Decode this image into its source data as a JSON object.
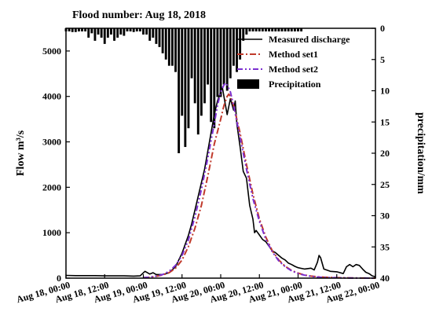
{
  "chart_data": {
    "type": "line",
    "title": "Flood number: Aug 18, 2018",
    "ylabel": "Flow m³/s",
    "y2label": "precipitation/mm",
    "ylim": [
      0,
      5500
    ],
    "y2lim": [
      0,
      40
    ],
    "y2_inverted": true,
    "xlim": [
      "Aug 18, 00:00",
      "Aug 22, 00:00"
    ],
    "x_unit": "hours since Aug 18, 00:00",
    "x_ticks": [
      {
        "label": "Aug 18, 00:00",
        "x": 0
      },
      {
        "label": "Aug 18, 12:00",
        "x": 12
      },
      {
        "label": "Aug 19, 00:00",
        "x": 24
      },
      {
        "label": "Aug 19, 12:00",
        "x": 36
      },
      {
        "label": "Aug 20, 00:00",
        "x": 48
      },
      {
        "label": "Aug 20, 12:00",
        "x": 60
      },
      {
        "label": "Aug 21, 00:00",
        "x": 72
      },
      {
        "label": "Aug 21, 12:00",
        "x": 84
      },
      {
        "label": "Aug 22, 00:00",
        "x": 96
      }
    ],
    "y_ticks": [
      0,
      1000,
      2000,
      3000,
      4000,
      5000
    ],
    "y2_ticks": [
      0,
      5,
      10,
      15,
      20,
      25,
      30,
      35,
      40
    ],
    "legend": {
      "position": "top-right"
    },
    "series": [
      {
        "name": "Measured discharge",
        "type": "line",
        "axis": "left",
        "color": "#000000",
        "dash": "solid",
        "points": [
          [
            0,
            60
          ],
          [
            3,
            55
          ],
          [
            6,
            55
          ],
          [
            9,
            55
          ],
          [
            12,
            50
          ],
          [
            15,
            50
          ],
          [
            18,
            50
          ],
          [
            21,
            45
          ],
          [
            23,
            50
          ],
          [
            24.5,
            150
          ],
          [
            26,
            90
          ],
          [
            27,
            120
          ],
          [
            28,
            80
          ],
          [
            30,
            80
          ],
          [
            32,
            120
          ],
          [
            34,
            250
          ],
          [
            35,
            400
          ],
          [
            36,
            550
          ],
          [
            37,
            750
          ],
          [
            38,
            950
          ],
          [
            39,
            1200
          ],
          [
            40,
            1500
          ],
          [
            41,
            1800
          ],
          [
            42,
            2100
          ],
          [
            43,
            2400
          ],
          [
            44,
            2800
          ],
          [
            45,
            3200
          ],
          [
            46,
            3600
          ],
          [
            47,
            3900
          ],
          [
            48,
            4100
          ],
          [
            48.5,
            4200
          ],
          [
            49,
            4000
          ],
          [
            50,
            3600
          ],
          [
            51,
            3950
          ],
          [
            52,
            3700
          ],
          [
            52.5,
            3900
          ],
          [
            53,
            3400
          ],
          [
            54,
            2900
          ],
          [
            55,
            2350
          ],
          [
            56,
            2200
          ],
          [
            57,
            1600
          ],
          [
            58,
            1300
          ],
          [
            58.5,
            1000
          ],
          [
            59,
            1050
          ],
          [
            60,
            950
          ],
          [
            61,
            850
          ],
          [
            62,
            800
          ],
          [
            63,
            700
          ],
          [
            64,
            600
          ],
          [
            65,
            560
          ],
          [
            66,
            500
          ],
          [
            67,
            440
          ],
          [
            68,
            400
          ],
          [
            69,
            330
          ],
          [
            70,
            300
          ],
          [
            71,
            260
          ],
          [
            72,
            230
          ],
          [
            74,
            200
          ],
          [
            76,
            220
          ],
          [
            77,
            180
          ],
          [
            78,
            350
          ],
          [
            78.5,
            500
          ],
          [
            79,
            450
          ],
          [
            80,
            200
          ],
          [
            82,
            150
          ],
          [
            84,
            140
          ],
          [
            86,
            100
          ],
          [
            87,
            250
          ],
          [
            88,
            300
          ],
          [
            89,
            250
          ],
          [
            90,
            300
          ],
          [
            91,
            280
          ],
          [
            92,
            200
          ],
          [
            93,
            130
          ],
          [
            94,
            100
          ],
          [
            95,
            50
          ],
          [
            96,
            30
          ]
        ]
      },
      {
        "name": "Method set1",
        "type": "line",
        "axis": "left",
        "color": "#c0392b",
        "dash": "dash-dot",
        "points": [
          [
            24,
            10
          ],
          [
            26,
            20
          ],
          [
            28,
            40
          ],
          [
            30,
            70
          ],
          [
            32,
            120
          ],
          [
            34,
            220
          ],
          [
            36,
            400
          ],
          [
            38,
            700
          ],
          [
            40,
            1100
          ],
          [
            42,
            1600
          ],
          [
            44,
            2250
          ],
          [
            46,
            2950
          ],
          [
            48,
            3500
          ],
          [
            49,
            3800
          ],
          [
            50,
            4000
          ],
          [
            50.5,
            4050
          ],
          [
            51,
            4000
          ],
          [
            52,
            3800
          ],
          [
            54,
            3200
          ],
          [
            56,
            2500
          ],
          [
            58,
            1850
          ],
          [
            60,
            1300
          ],
          [
            62,
            900
          ],
          [
            64,
            600
          ],
          [
            66,
            400
          ],
          [
            68,
            260
          ],
          [
            70,
            170
          ],
          [
            72,
            110
          ],
          [
            74,
            70
          ],
          [
            76,
            45
          ],
          [
            78,
            30
          ],
          [
            80,
            20
          ],
          [
            84,
            10
          ],
          [
            88,
            5
          ],
          [
            92,
            2
          ],
          [
            96,
            0
          ]
        ]
      },
      {
        "name": "Method set2",
        "type": "line",
        "axis": "left",
        "color": "#7b2fd0",
        "dash": "dash-dot-dot",
        "points": [
          [
            24,
            10
          ],
          [
            26,
            20
          ],
          [
            28,
            45
          ],
          [
            30,
            80
          ],
          [
            32,
            150
          ],
          [
            34,
            280
          ],
          [
            36,
            500
          ],
          [
            38,
            850
          ],
          [
            40,
            1350
          ],
          [
            42,
            1950
          ],
          [
            44,
            2650
          ],
          [
            46,
            3400
          ],
          [
            47,
            3800
          ],
          [
            48,
            4100
          ],
          [
            49,
            4250
          ],
          [
            49.5,
            4300
          ],
          [
            50,
            4250
          ],
          [
            51,
            4100
          ],
          [
            52,
            3800
          ],
          [
            54,
            3100
          ],
          [
            56,
            2400
          ],
          [
            58,
            1750
          ],
          [
            60,
            1250
          ],
          [
            62,
            850
          ],
          [
            64,
            580
          ],
          [
            66,
            380
          ],
          [
            68,
            250
          ],
          [
            70,
            160
          ],
          [
            72,
            100
          ],
          [
            74,
            65
          ],
          [
            76,
            40
          ],
          [
            78,
            25
          ],
          [
            80,
            15
          ],
          [
            84,
            8
          ],
          [
            88,
            4
          ],
          [
            92,
            2
          ],
          [
            96,
            0
          ]
        ]
      },
      {
        "name": "Precipitation",
        "type": "bar",
        "axis": "right",
        "color": "#000000",
        "points": [
          [
            0,
            0.5
          ],
          [
            1,
            0.5
          ],
          [
            2,
            0.6
          ],
          [
            3,
            0.6
          ],
          [
            4,
            0.5
          ],
          [
            5,
            0.5
          ],
          [
            6,
            0.5
          ],
          [
            7,
            1.5
          ],
          [
            8,
            0.8
          ],
          [
            9,
            2
          ],
          [
            10,
            1
          ],
          [
            11,
            1.5
          ],
          [
            12,
            2.5
          ],
          [
            13,
            1.5
          ],
          [
            14,
            1
          ],
          [
            15,
            2
          ],
          [
            16,
            1.5
          ],
          [
            17,
            1
          ],
          [
            18,
            1.2
          ],
          [
            19,
            0.5
          ],
          [
            20,
            0.5
          ],
          [
            21,
            0.6
          ],
          [
            22,
            0.5
          ],
          [
            23,
            0.5
          ],
          [
            24,
            1
          ],
          [
            25,
            1
          ],
          [
            26,
            2
          ],
          [
            27,
            1.5
          ],
          [
            28,
            2.5
          ],
          [
            29,
            3
          ],
          [
            30,
            4
          ],
          [
            31,
            5
          ],
          [
            32,
            6
          ],
          [
            33,
            6
          ],
          [
            34,
            7
          ],
          [
            35,
            20
          ],
          [
            36,
            14
          ],
          [
            37,
            19
          ],
          [
            38,
            16
          ],
          [
            39,
            8
          ],
          [
            40,
            12
          ],
          [
            41,
            17
          ],
          [
            42,
            14
          ],
          [
            43,
            12
          ],
          [
            44,
            9
          ],
          [
            45,
            15
          ],
          [
            46,
            16
          ],
          [
            47,
            11
          ],
          [
            48,
            11
          ],
          [
            49,
            9
          ],
          [
            50,
            10
          ],
          [
            51,
            8
          ],
          [
            52,
            6
          ],
          [
            53,
            7
          ],
          [
            54,
            5
          ],
          [
            55,
            2
          ],
          [
            56,
            1
          ],
          [
            57,
            0.5
          ],
          [
            58,
            0.5
          ],
          [
            59,
            0.5
          ],
          [
            60,
            0.5
          ],
          [
            61,
            0.5
          ],
          [
            62,
            0.5
          ],
          [
            63,
            0.5
          ],
          [
            64,
            0.5
          ],
          [
            65,
            0.5
          ],
          [
            66,
            0.5
          ],
          [
            67,
            0.5
          ],
          [
            68,
            0.5
          ],
          [
            69,
            0.5
          ],
          [
            70,
            0.5
          ],
          [
            71,
            0.5
          ],
          [
            72,
            0.5
          ],
          [
            73,
            0.5
          ]
        ]
      }
    ]
  }
}
